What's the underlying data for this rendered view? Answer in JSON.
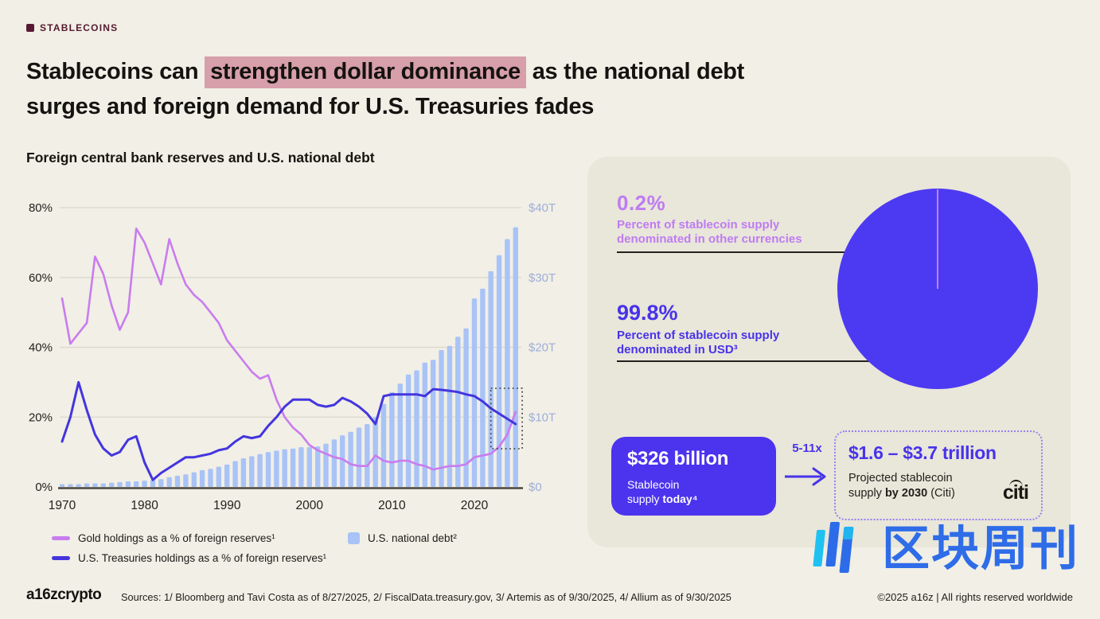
{
  "tag": {
    "label": "STABLECOINS"
  },
  "title": {
    "pre": "Stablecoins can ",
    "highlight": "strengthen dollar dominance",
    "post": " as the national debt",
    "line2": "surges and foreign demand for U.S. Treasuries fades"
  },
  "chart_data": {
    "type": "combo-bar-line",
    "title": "Foreign central bank reserves and U.S. national debt",
    "x": [
      1970,
      1971,
      1972,
      1973,
      1974,
      1975,
      1976,
      1977,
      1978,
      1979,
      1980,
      1981,
      1982,
      1983,
      1984,
      1985,
      1986,
      1987,
      1988,
      1989,
      1990,
      1991,
      1992,
      1993,
      1994,
      1995,
      1996,
      1997,
      1998,
      1999,
      2000,
      2001,
      2002,
      2003,
      2004,
      2005,
      2006,
      2007,
      2008,
      2009,
      2010,
      2011,
      2012,
      2013,
      2014,
      2015,
      2016,
      2017,
      2018,
      2019,
      2020,
      2021,
      2022,
      2023,
      2024,
      2025
    ],
    "series": [
      {
        "name": "Gold holdings as a % of foreign reserves¹",
        "type": "line",
        "axis": "left",
        "color": "#C97CEE",
        "values": [
          54,
          41,
          44,
          47,
          66,
          61,
          52,
          45,
          50,
          74,
          70,
          64,
          58,
          71,
          64,
          58,
          55,
          53,
          50,
          47,
          42,
          39,
          36,
          33,
          31,
          32,
          25,
          20,
          17,
          15,
          12,
          10.5,
          9.5,
          8.5,
          8,
          6.5,
          6,
          6,
          9,
          7.5,
          7,
          7.5,
          7.5,
          6.5,
          6,
          5,
          5.5,
          6,
          6,
          6.5,
          8.5,
          9,
          9.5,
          11.5,
          15,
          21.5
        ]
      },
      {
        "name": "U.S. Treasuries holdings as a % of foreign reserves¹",
        "type": "line",
        "axis": "left",
        "color": "#4435DE",
        "values": [
          13,
          20,
          30,
          22,
          15,
          11,
          9,
          10,
          13.5,
          14.5,
          7,
          2,
          4,
          5.5,
          7,
          8.5,
          8.5,
          9,
          9.5,
          10.5,
          11,
          13,
          14.5,
          14,
          14.5,
          17.5,
          20,
          23,
          25,
          25,
          25,
          23.5,
          23,
          23.5,
          25.5,
          24.5,
          23,
          21,
          18,
          26,
          26.5,
          26.5,
          26.5,
          26.5,
          26,
          28,
          27.8,
          27.5,
          27.2,
          26.5,
          26,
          24.5,
          22.5,
          21,
          19.5,
          18
        ]
      },
      {
        "name": "U.S. national debt²",
        "type": "bar",
        "axis": "right",
        "color": "#A9C3F7",
        "values": [
          0.4,
          0.4,
          0.4,
          0.5,
          0.5,
          0.5,
          0.6,
          0.7,
          0.8,
          0.8,
          0.9,
          1.0,
          1.1,
          1.4,
          1.6,
          1.8,
          2.1,
          2.4,
          2.6,
          2.9,
          3.2,
          3.7,
          4.1,
          4.4,
          4.7,
          5.0,
          5.2,
          5.4,
          5.5,
          5.7,
          5.7,
          5.8,
          6.2,
          6.8,
          7.4,
          7.9,
          8.5,
          9.0,
          10.0,
          11.9,
          13.6,
          14.8,
          16.1,
          16.7,
          17.8,
          18.2,
          19.6,
          20.2,
          21.5,
          22.7,
          27.0,
          28.4,
          30.9,
          33.2,
          35.5,
          37.2
        ]
      }
    ],
    "left_axis": {
      "unit": "%",
      "range": [
        0,
        80
      ],
      "ticks": [
        0,
        20,
        40,
        60,
        80
      ],
      "labels": [
        "0%",
        "20%",
        "40%",
        "60%",
        "80%"
      ]
    },
    "right_axis": {
      "unit": "$T",
      "range": [
        0,
        40
      ],
      "ticks": [
        0,
        10,
        20,
        30,
        40
      ],
      "labels": [
        "$0",
        "$10T",
        "$20T",
        "$30T",
        "$40T"
      ]
    },
    "x_ticks": [
      1970,
      1980,
      1990,
      2000,
      2010,
      2020
    ],
    "grid": true,
    "legend_position": "bottom",
    "highlight_box_years": [
      2022,
      2025.8
    ]
  },
  "panel": {
    "stat_other": {
      "value": "0.2%",
      "line1": "Percent of stablecoin supply",
      "line2": "denominated in other currencies"
    },
    "stat_usd": {
      "value": "99.8%",
      "line1": "Percent of stablecoin supply",
      "line2": "denominated in USD³"
    },
    "pie": {
      "usd_pct": 99.8,
      "other_pct": 0.2,
      "usd_color": "#4C3AF2",
      "other_color": "#C97CEE"
    }
  },
  "supply": {
    "today_value": "$326 billion",
    "today_line1": "Stablecoin",
    "today_line2_pre": "supply ",
    "today_line2_bold": "today⁴",
    "multiplier": "5-11x",
    "projected_value": "$1.6 – $3.7 trillion",
    "projected_line1": "Projected stablecoin",
    "projected_line2_pre": "supply ",
    "projected_line2_bold": "by 2030",
    "projected_line2_post": " (Citi)",
    "citi_logo_text": "citi"
  },
  "watermark": {
    "text": "区块周刊"
  },
  "footer": {
    "brand": "a16zcrypto",
    "sources": "Sources: 1/ Bloomberg and Tavi Costa as of 8/27/2025, 2/ FiscalData.treasury.gov, 3/ Artemis as of 9/30/2025, 4/ Allium as of 9/30/2025",
    "copyright": "©2025 a16z | All rights reserved worldwide"
  },
  "colors": {
    "background": "#F1EFE6",
    "panel": "#E9E6DA",
    "title_highlight": "#D79FA9",
    "tag_maroon": "#571A31",
    "gold_line": "#C97CEE",
    "treasuries_line": "#4435DE",
    "debt_bars": "#A9C3F7",
    "right_axis_labels": "#9FAED9",
    "indigo": "#4733EA",
    "stat_purple": "#BE7CF2",
    "today_box": "#4C33EE",
    "watermark_blue": "#2E6CE8",
    "watermark_cyan": "#1FC1F2"
  }
}
